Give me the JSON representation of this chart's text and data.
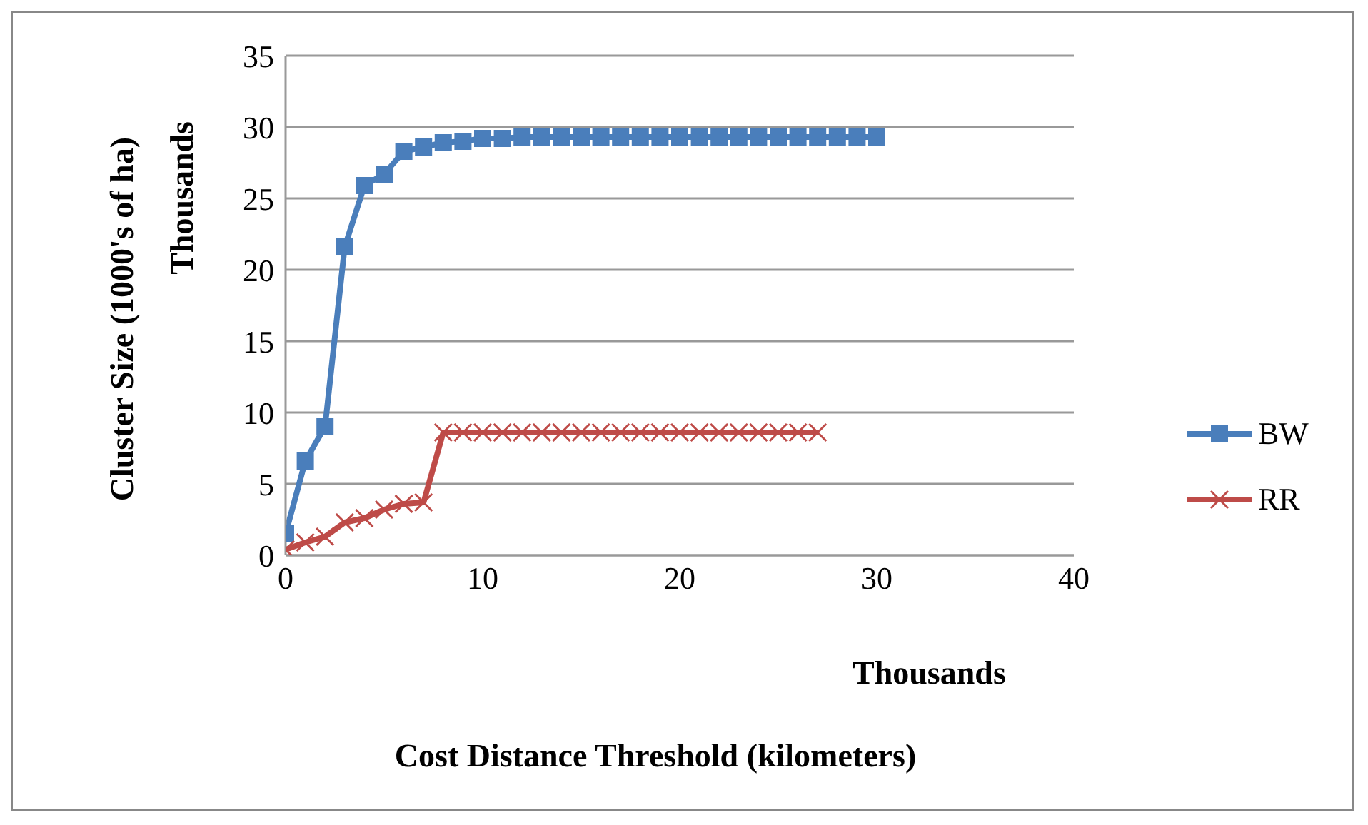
{
  "chart_data": {
    "type": "line",
    "xlabel": "Cost Distance Threshold (kilometers)",
    "ylabel": "Cluster Size (1000's of ha)",
    "annotations": [
      "Thousands",
      "Thousands"
    ],
    "series": [
      {
        "name": "BW",
        "color": "#4a7ebb",
        "marker": "square",
        "x": [
          0,
          1,
          2,
          3,
          4,
          5,
          6,
          7,
          8,
          9,
          10,
          11,
          12,
          13,
          14,
          15,
          16,
          17,
          18,
          19,
          20,
          21,
          22,
          23,
          24,
          25,
          26,
          27,
          28,
          29,
          30
        ],
        "values": [
          1.5,
          6.6,
          9.0,
          21.6,
          25.9,
          26.7,
          28.3,
          28.6,
          28.9,
          29.0,
          29.2,
          29.2,
          29.3,
          29.3,
          29.3,
          29.3,
          29.3,
          29.3,
          29.3,
          29.3,
          29.3,
          29.3,
          29.3,
          29.3,
          29.3,
          29.3,
          29.3,
          29.3,
          29.3,
          29.3,
          29.3
        ]
      },
      {
        "name": "RR",
        "color": "#be4b48",
        "marker": "cross",
        "x": [
          0,
          1,
          2,
          3,
          4,
          5,
          6,
          7,
          8,
          9,
          10,
          11,
          12,
          13,
          14,
          15,
          16,
          17,
          18,
          19,
          20,
          21,
          22,
          23,
          24,
          25,
          26,
          27
        ],
        "values": [
          0.4,
          0.9,
          1.3,
          2.3,
          2.6,
          3.2,
          3.6,
          3.7,
          8.6,
          8.6,
          8.6,
          8.6,
          8.6,
          8.6,
          8.6,
          8.6,
          8.6,
          8.6,
          8.6,
          8.6,
          8.6,
          8.6,
          8.6,
          8.6,
          8.6,
          8.6,
          8.6,
          8.6
        ]
      }
    ],
    "xlim": [
      0,
      40
    ],
    "xticks": [
      0,
      10,
      20,
      30,
      40
    ],
    "ylim": [
      0,
      35
    ],
    "yticks": [
      0,
      5,
      10,
      15,
      20,
      25,
      30,
      35
    ],
    "grid": "y",
    "legend": "right",
    "line_style": "solid"
  }
}
